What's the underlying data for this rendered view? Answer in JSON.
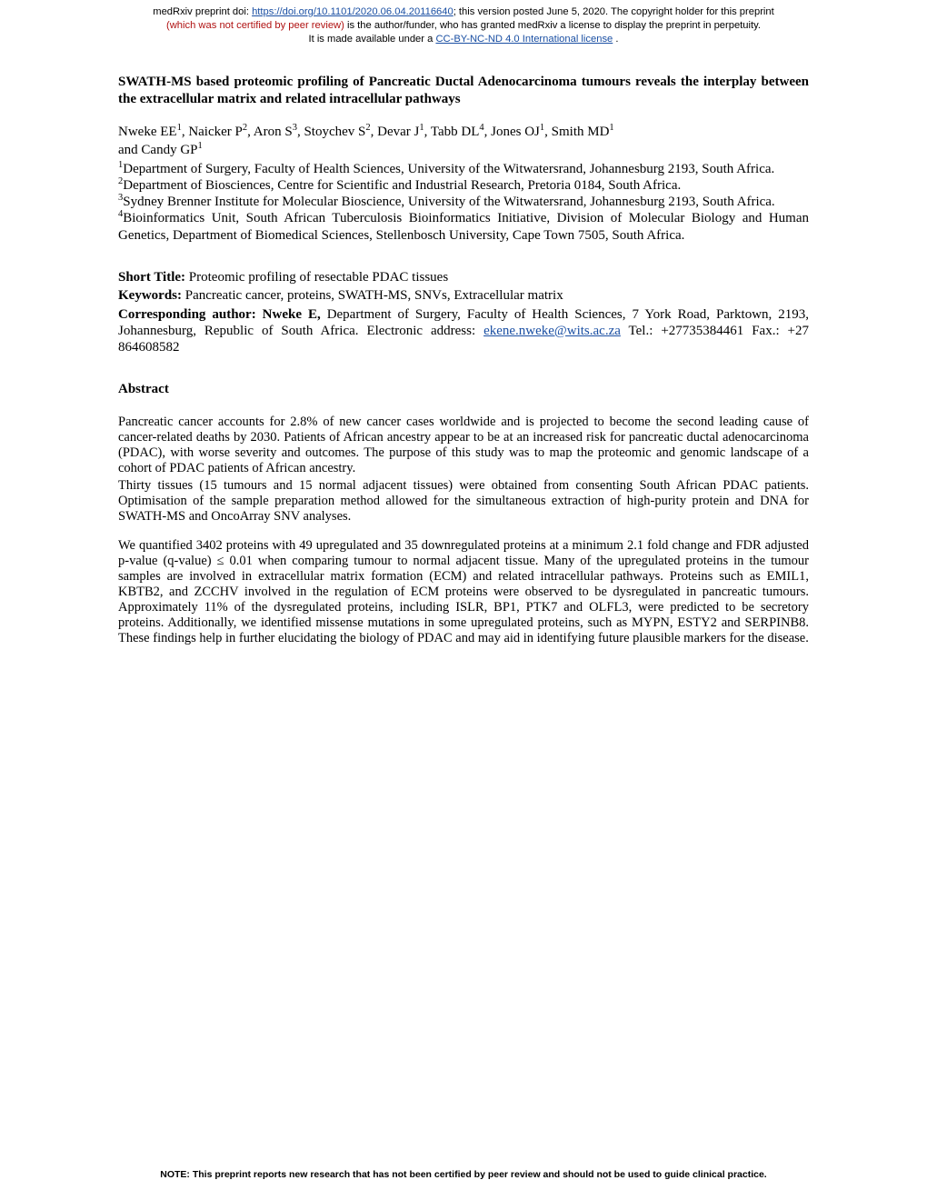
{
  "banner": {
    "prefix": "medRxiv preprint doi: ",
    "doi_url": "https://doi.org/10.1101/2020.06.04.20116640",
    "line1_suffix": "; this version posted June 5, 2020. The copyright holder for this preprint",
    "line2": "(which was not certified by peer review) ",
    "line2_suffix": "is the author/funder, who has granted medRxiv a license to display the preprint in perpetuity.",
    "line3_prefix": "It is made available under a ",
    "cc_text": "CC-BY-NC-ND 4.0 International license",
    "line3_suffix": " ."
  },
  "title": "SWATH-MS based proteomic profiling of Pancreatic Ductal Adenocarcinoma tumours reveals the interplay between the extracellular matrix and related intracellular pathways",
  "authors_line1": "Nweke EE",
  "authors_rest": ", Naicker P",
  "authors_a2": ", Aron S",
  "authors_a3": ", Stoychev S",
  "authors_a4": ", Devar J",
  "authors_a5": ", Tabb DL",
  "authors_a6": ", Jones OJ",
  "authors_a7": ", Smith MD",
  "authors_line2": "and Candy GP",
  "affils": {
    "a1": "Department of Surgery, Faculty of Health Sciences, University of the Witwatersrand, Johannesburg 2193, South Africa.",
    "a2": "Department of Biosciences, Centre for Scientific and Industrial Research, Pretoria 0184, South Africa.",
    "a3": "Sydney Brenner Institute for Molecular Bioscience, University of the Witwatersrand, Johannesburg 2193, South Africa.",
    "a4": "Bioinformatics Unit, South African Tuberculosis Bioinformatics Initiative, Division of Molecular Biology and Human Genetics, Department of Biomedical Sciences, Stellenbosch University, Cape Town 7505, South Africa."
  },
  "short_title_label": "Short Title: ",
  "short_title": "Proteomic profiling of resectable PDAC tissues",
  "keywords_label": "Keywords: ",
  "keywords": "Pancreatic cancer, proteins, SWATH-MS, SNVs, Extracellular matrix",
  "corr_label": "Corresponding author: Nweke E, ",
  "corr_text1": "Department of Surgery, Faculty of Health Sciences, 7 York Road, Parktown, 2193, Johannesburg, Republic of South Africa. Electronic address: ",
  "corr_email": "ekene.nweke@wits.ac.za",
  "corr_text2": "  Tel.: +27735384461 Fax.: +27 864608582",
  "abstract_label": "Abstract",
  "abstract": {
    "p1": "Pancreatic cancer accounts for 2.8% of new cancer cases worldwide and is projected to become the second leading cause of cancer-related deaths by 2030. Patients of African ancestry appear to be at an increased risk for pancreatic ductal adenocarcinoma (PDAC), with worse severity and outcomes. The purpose of this study was to map the proteomic and genomic landscape of a cohort of PDAC patients of African ancestry.",
    "p2": "Thirty tissues (15 tumours and 15 normal adjacent tissues) were obtained from consenting South African PDAC patients. Optimisation of the sample preparation method allowed for the simultaneous extraction of high-purity protein and DNA for SWATH-MS and OncoArray SNV analyses.",
    "p3": "We quantified 3402 proteins with 49 upregulated and 35 downregulated proteins at a minimum 2.1 fold change and FDR adjusted p-value (q-value) ≤ 0.01 when comparing tumour to normal adjacent tissue. Many of the upregulated proteins in the tumour samples are involved in extracellular matrix formation (ECM) and related intracellular pathways. Proteins such as EMIL1, KBTB2, and ZCCHV involved in the regulation of ECM proteins were observed to be dysregulated in pancreatic tumours. Approximately 11% of the dysregulated proteins, including ISLR, BP1, PTK7 and OLFL3, were predicted to be secretory proteins. Additionally, we identified missense mutations in some upregulated proteins, such as MYPN, ESTY2 and SERPINB8. These findings help in further elucidating the biology of PDAC and may aid in identifying future plausible markers for the disease."
  },
  "footer": "NOTE: This preprint reports new research that has not been certified by peer review and should not be used to guide clinical practice."
}
